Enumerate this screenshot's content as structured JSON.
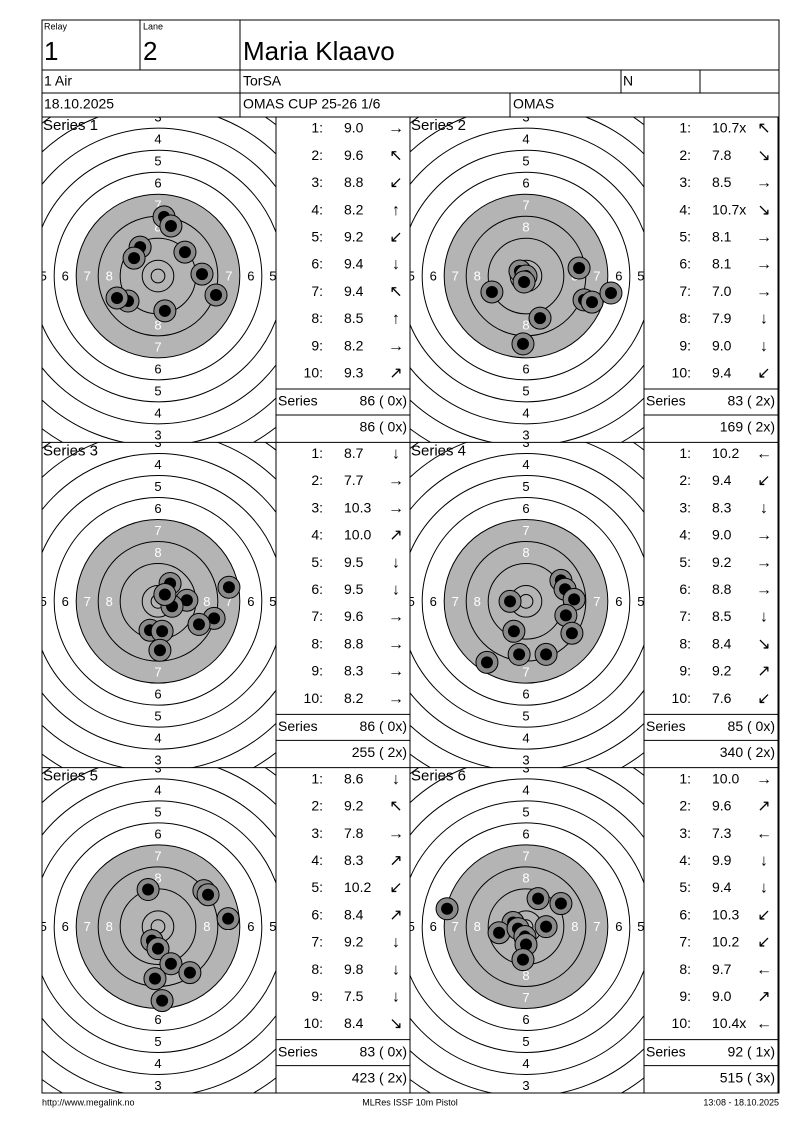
{
  "header": {
    "relay_label": "Relay",
    "relay": "1",
    "lane_label": "Lane",
    "lane": "2",
    "name": "Maria Klaavo",
    "event": "1 Air",
    "club": "TorSA",
    "gender": "N",
    "date": "18.10.2025",
    "competition": "OMAS CUP 25-26 1/6",
    "organizer": "OMAS"
  },
  "target": {
    "ring_labels": [
      3,
      4,
      5,
      6,
      7,
      8
    ]
  },
  "shot_numbers": [
    "1:",
    "2:",
    "3:",
    "4:",
    "5:",
    "6:",
    "7:",
    "8:",
    "9:",
    "10:"
  ],
  "series_label": "Series",
  "series": [
    {
      "title": "Series 1",
      "scores": [
        "9.0",
        "9.6",
        "8.8",
        "8.2",
        "9.2",
        "9.4",
        "9.4",
        "8.5",
        "8.2",
        "9.3"
      ],
      "arrows": [
        "→",
        "↖",
        "↙",
        "↑",
        "↙",
        "↓",
        "↖",
        "↑",
        "→",
        "↗"
      ],
      "total": "86 ( 0x)",
      "cumulative": "86 ( 0x)",
      "hits": [
        {
          "x": 2.2,
          "y": 21.5
        },
        {
          "x": 4.7,
          "y": 18.2
        },
        {
          "x": -6.5,
          "y": 10.5
        },
        {
          "x": -8.7,
          "y": 6.5
        },
        {
          "x": 9.8,
          "y": 8.7
        },
        {
          "x": 16.0,
          "y": 0.7
        },
        {
          "x": 21.1,
          "y": -6.9
        },
        {
          "x": -10.9,
          "y": -9.1
        },
        {
          "x": -14.9,
          "y": -8.0
        },
        {
          "x": 2.5,
          "y": -12.7
        }
      ]
    },
    {
      "title": "Series 2",
      "scores": [
        "10.7x",
        "7.8",
        "8.5",
        "10.7x",
        "8.1",
        "8.1",
        "7.0",
        "7.9",
        "9.0",
        "9.4"
      ],
      "arrows": [
        "↖",
        "↘",
        "→",
        "↘",
        "→",
        "→",
        "→",
        "↓",
        "↓",
        "↙"
      ],
      "total": "83 ( 2x)",
      "cumulative": "169 ( 2x)",
      "hits": [
        {
          "x": -2.2,
          "y": 1.8
        },
        {
          "x": 0,
          "y": 0
        },
        {
          "x": -0.7,
          "y": -2.2
        },
        {
          "x": 19.3,
          "y": 2.9
        },
        {
          "x": -12.4,
          "y": -5.8
        },
        {
          "x": 21.1,
          "y": -8.7
        },
        {
          "x": 24.0,
          "y": -9.5
        },
        {
          "x": 30.9,
          "y": -6.2
        },
        {
          "x": 5.1,
          "y": -15.3
        },
        {
          "x": -1.1,
          "y": -24.7
        }
      ]
    },
    {
      "title": "Series 3",
      "scores": [
        "8.7",
        "7.7",
        "10.3",
        "10.0",
        "9.5",
        "9.5",
        "9.6",
        "8.8",
        "8.3",
        "8.2"
      ],
      "arrows": [
        "↓",
        "→",
        "→",
        "↗",
        "↓",
        "↓",
        "→",
        "→",
        "→",
        "→"
      ],
      "total": "86 ( 0x)",
      "cumulative": "255 ( 2x)",
      "hits": [
        {
          "x": 4.4,
          "y": 6.5
        },
        {
          "x": 10.5,
          "y": 0.4
        },
        {
          "x": 5.1,
          "y": -1.8
        },
        {
          "x": 25.8,
          "y": 5.1
        },
        {
          "x": 20.4,
          "y": -6.2
        },
        {
          "x": 14.9,
          "y": -8.4
        },
        {
          "x": -2.9,
          "y": -10.5
        },
        {
          "x": 1.5,
          "y": -10.9
        },
        {
          "x": 0.7,
          "y": -17.8
        },
        {
          "x": 2.5,
          "y": 2.5
        }
      ]
    },
    {
      "title": "Series 4",
      "scores": [
        "10.2",
        "9.4",
        "8.3",
        "9.0",
        "9.2",
        "8.8",
        "8.5",
        "8.4",
        "9.2",
        "7.6"
      ],
      "arrows": [
        "←",
        "↙",
        "↓",
        "→",
        "→",
        "→",
        "↓",
        "↘",
        "↗",
        "↙"
      ],
      "total": "85 ( 0x)",
      "cumulative": "340 ( 2x)",
      "hits": [
        {
          "x": 12.7,
          "y": 7.6
        },
        {
          "x": 14.2,
          "y": 4.4
        },
        {
          "x": 17.5,
          "y": 0.7
        },
        {
          "x": -5.8,
          "y": 0
        },
        {
          "x": 14.5,
          "y": -5.1
        },
        {
          "x": 16.7,
          "y": -11.6
        },
        {
          "x": -4.4,
          "y": -10.9
        },
        {
          "x": -2.5,
          "y": -19.3
        },
        {
          "x": 7.3,
          "y": -19.3
        },
        {
          "x": -14.2,
          "y": -22.2
        }
      ]
    },
    {
      "title": "Series 5",
      "scores": [
        "8.6",
        "9.2",
        "7.8",
        "8.3",
        "10.2",
        "8.4",
        "9.2",
        "9.8",
        "7.5",
        "8.4"
      ],
      "arrows": [
        "↓",
        "↖",
        "→",
        "↗",
        "↙",
        "↗",
        "↓",
        "↓",
        "↓",
        "↘"
      ],
      "total": "83 ( 0x)",
      "cumulative": "423 ( 2x)",
      "hits": [
        {
          "x": -3.6,
          "y": 13.5
        },
        {
          "x": 16.7,
          "y": 13.1
        },
        {
          "x": 25.5,
          "y": 2.9
        },
        {
          "x": -2.2,
          "y": -5.1
        },
        {
          "x": 0,
          "y": -8.0
        },
        {
          "x": 4.7,
          "y": -13.5
        },
        {
          "x": 11.6,
          "y": -16.7
        },
        {
          "x": -1.1,
          "y": -18.9
        },
        {
          "x": 1.5,
          "y": -26.9
        },
        {
          "x": 18.2,
          "y": 11.6
        }
      ]
    },
    {
      "title": "Series 6",
      "scores": [
        "10.0",
        "9.6",
        "7.3",
        "9.9",
        "9.4",
        "10.3",
        "10.2",
        "9.7",
        "9.0",
        "10.4x"
      ],
      "arrows": [
        "→",
        "↗",
        "←",
        "↓",
        "↓",
        "↙",
        "↙",
        "←",
        "↗",
        "←"
      ],
      "total": "92 ( 1x)",
      "cumulative": "515 ( 3x)",
      "hits": [
        {
          "x": 4.4,
          "y": 10.2
        },
        {
          "x": 12.7,
          "y": 8.4
        },
        {
          "x": -28.7,
          "y": 6.5
        },
        {
          "x": -4.7,
          "y": 1.5
        },
        {
          "x": -9.8,
          "y": -2.2
        },
        {
          "x": -2.9,
          "y": -0.7
        },
        {
          "x": -0.4,
          "y": -3.6
        },
        {
          "x": 7.3,
          "y": 0
        },
        {
          "x": 0,
          "y": -6.5
        },
        {
          "x": -1.1,
          "y": -12.0
        }
      ]
    }
  ],
  "footer": {
    "left": "http://www.megalink.no",
    "center": "MLRes ISSF 10m Pistol",
    "right": "13:08 - 18.10.2025"
  }
}
